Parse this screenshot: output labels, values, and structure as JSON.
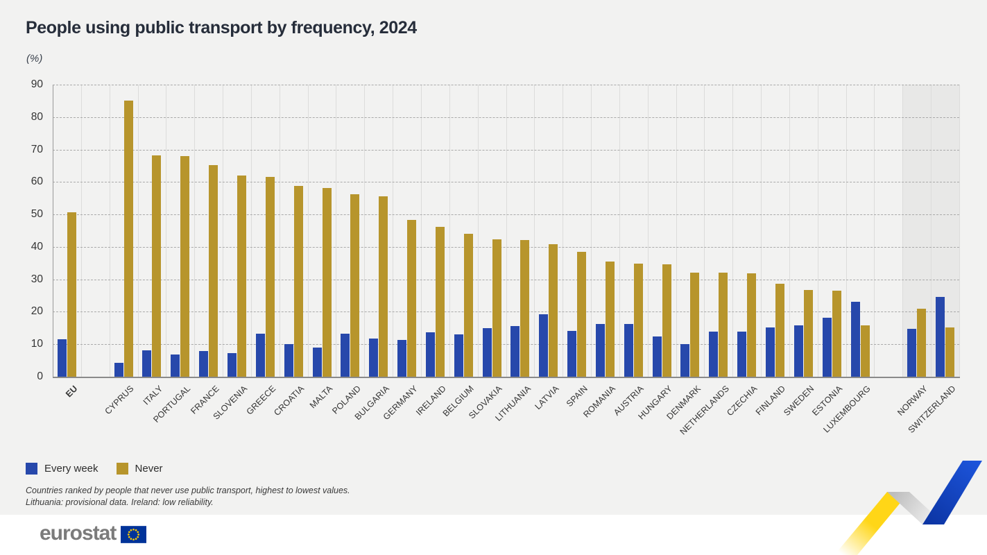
{
  "chart_data": {
    "type": "bar",
    "title": "People using public transport by frequency, 2024",
    "unit": "(%)",
    "ylim": [
      0,
      90
    ],
    "ytick_step": 10,
    "yticks": [
      0,
      10,
      20,
      30,
      40,
      50,
      60,
      70,
      80,
      90
    ],
    "grid": "horizontal-dashed",
    "legend_position": "bottom-left",
    "categories": [
      "EU",
      "CYPRUS",
      "ITALY",
      "PORTUGAL",
      "FRANCE",
      "SLOVENIA",
      "GREECE",
      "CROATIA",
      "MALTA",
      "POLAND",
      "BULGARIA",
      "GERMANY",
      "IRELAND",
      "BELGIUM",
      "SLOVAKIA",
      "LITHUANIA",
      "LATVIA",
      "SPAIN",
      "ROMANIA",
      "AUSTRIA",
      "HUNGARY",
      "DENMARK",
      "NETHERLANDS",
      "CZECHIA",
      "FINLAND",
      "SWEDEN",
      "ESTONIA",
      "LUXEMBOURG",
      "NORWAY",
      "SWITZERLAND"
    ],
    "series": [
      {
        "name": "Every week",
        "color": "#2748ab",
        "values": [
          11.5,
          4.3,
          8.2,
          6.9,
          7.9,
          7.2,
          13.3,
          10.0,
          9.0,
          13.3,
          11.8,
          11.4,
          13.6,
          13.1,
          14.9,
          15.7,
          19.2,
          14.2,
          16.3,
          16.3,
          12.3,
          10.0,
          14.0,
          13.8,
          15.1,
          15.8,
          18.2,
          23.1,
          14.7,
          24.6
        ]
      },
      {
        "name": "Never",
        "color": "#b7952c",
        "values": [
          50.7,
          85.0,
          68.2,
          68.0,
          65.2,
          61.9,
          61.5,
          58.8,
          58.1,
          56.3,
          55.6,
          48.4,
          46.2,
          44.1,
          42.4,
          42.1,
          40.8,
          38.4,
          35.4,
          34.8,
          34.7,
          32.1,
          32.0,
          31.9,
          28.6,
          26.8,
          26.5,
          15.9,
          20.9,
          15.1
        ]
      }
    ],
    "gaps_after": [
      "EU",
      "LUXEMBOURG"
    ],
    "highlighted_categories": [
      "NORWAY",
      "SWITZERLAND"
    ],
    "bold_categories": [
      "EU"
    ]
  },
  "footnotes": {
    "line1": "Countries ranked by people that never use public transport, highest to lowest values.",
    "line2": "Lithuania: provisional data. Ireland: low reliability."
  },
  "footer": {
    "logo_text": "eurostat"
  },
  "colors": {
    "background": "#f2f2f1",
    "footer_background": "#ffffff",
    "highlight_column_background": "#e8e8e7",
    "every_week_blue": "#2748ab",
    "never_gold": "#b7952c",
    "ribbon_yellow": "#ffd617",
    "ribbon_blue": "#1d55dc",
    "eu_flag_blue": "#003399",
    "eu_flag_stars": "#ffcc00",
    "logo_gray": "#7b7b7b"
  }
}
